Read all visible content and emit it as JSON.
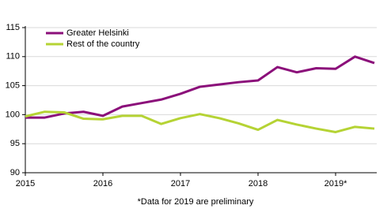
{
  "chart_data": {
    "type": "line",
    "categories": [
      "2015",
      null,
      null,
      null,
      "2016",
      null,
      null,
      null,
      "2017",
      null,
      null,
      null,
      "2018",
      null,
      null,
      null,
      "2019*",
      null,
      null
    ],
    "series": [
      {
        "name": "Greater Helsinki",
        "color": "#8b0f7a",
        "values": [
          99.5,
          99.5,
          100.2,
          100.5,
          99.8,
          101.4,
          102,
          102.6,
          103.6,
          104.8,
          105.2,
          105.6,
          105.9,
          108.2,
          107.3,
          108,
          107.9,
          110,
          108.9
        ]
      },
      {
        "name": "Rest of the country",
        "color": "#b5d334",
        "values": [
          99.7,
          100.5,
          100.4,
          99.3,
          99.2,
          99.8,
          99.8,
          98.4,
          99.4,
          100.1,
          99.4,
          98.5,
          97.4,
          99.1,
          98.3,
          97.6,
          97,
          97.9,
          97.6
        ]
      }
    ],
    "ylim": [
      90,
      115
    ],
    "yticks": [
      90,
      95,
      100,
      105,
      110,
      115
    ],
    "grid": true,
    "legend": "top-left",
    "footnote": "*Data for 2019 are preliminary"
  }
}
